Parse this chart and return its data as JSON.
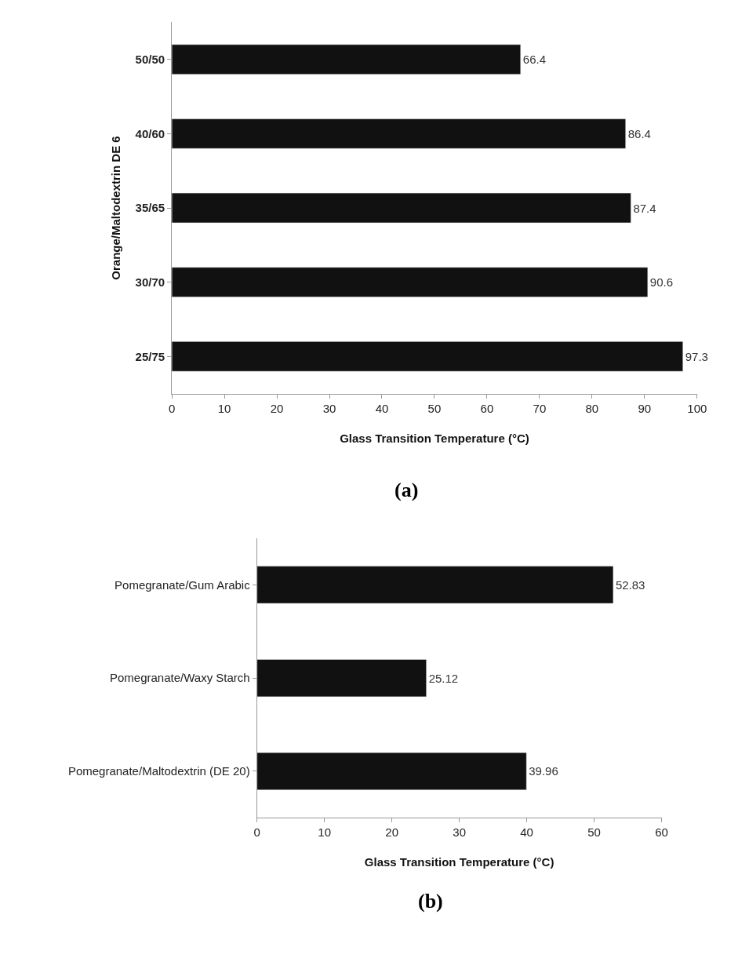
{
  "chart_data": [
    {
      "type": "bar",
      "orientation": "horizontal",
      "categories": [
        "50/50",
        "40/60",
        "35/65",
        "30/70",
        "25/75"
      ],
      "values": [
        66.4,
        86.4,
        87.4,
        90.6,
        97.3
      ],
      "color": "#111111",
      "xlabel": "Glass Transition Temperature (°C)",
      "ylabel": "Orange/Maltodextrin DE 6",
      "xlim": [
        0,
        100
      ],
      "xticks": [
        0,
        10,
        20,
        30,
        40,
        50,
        60,
        70,
        80,
        90,
        100
      ],
      "data_labels": true,
      "grid": false,
      "annotations": [
        "(a)"
      ]
    },
    {
      "type": "bar",
      "orientation": "horizontal",
      "categories": [
        "Pomegranate/Gum Arabic",
        "Pomegranate/Waxy Starch",
        "Pomegranate/Maltodextrin (DE 20)"
      ],
      "values": [
        52.83,
        25.12,
        39.96
      ],
      "color": "#111111",
      "xlabel": "Glass Transition Temperature (°C)",
      "xlim": [
        0,
        60
      ],
      "xticks": [
        0,
        10,
        20,
        30,
        40,
        50,
        60
      ],
      "data_labels": true,
      "grid": false,
      "annotations": [
        "(b)"
      ]
    }
  ]
}
